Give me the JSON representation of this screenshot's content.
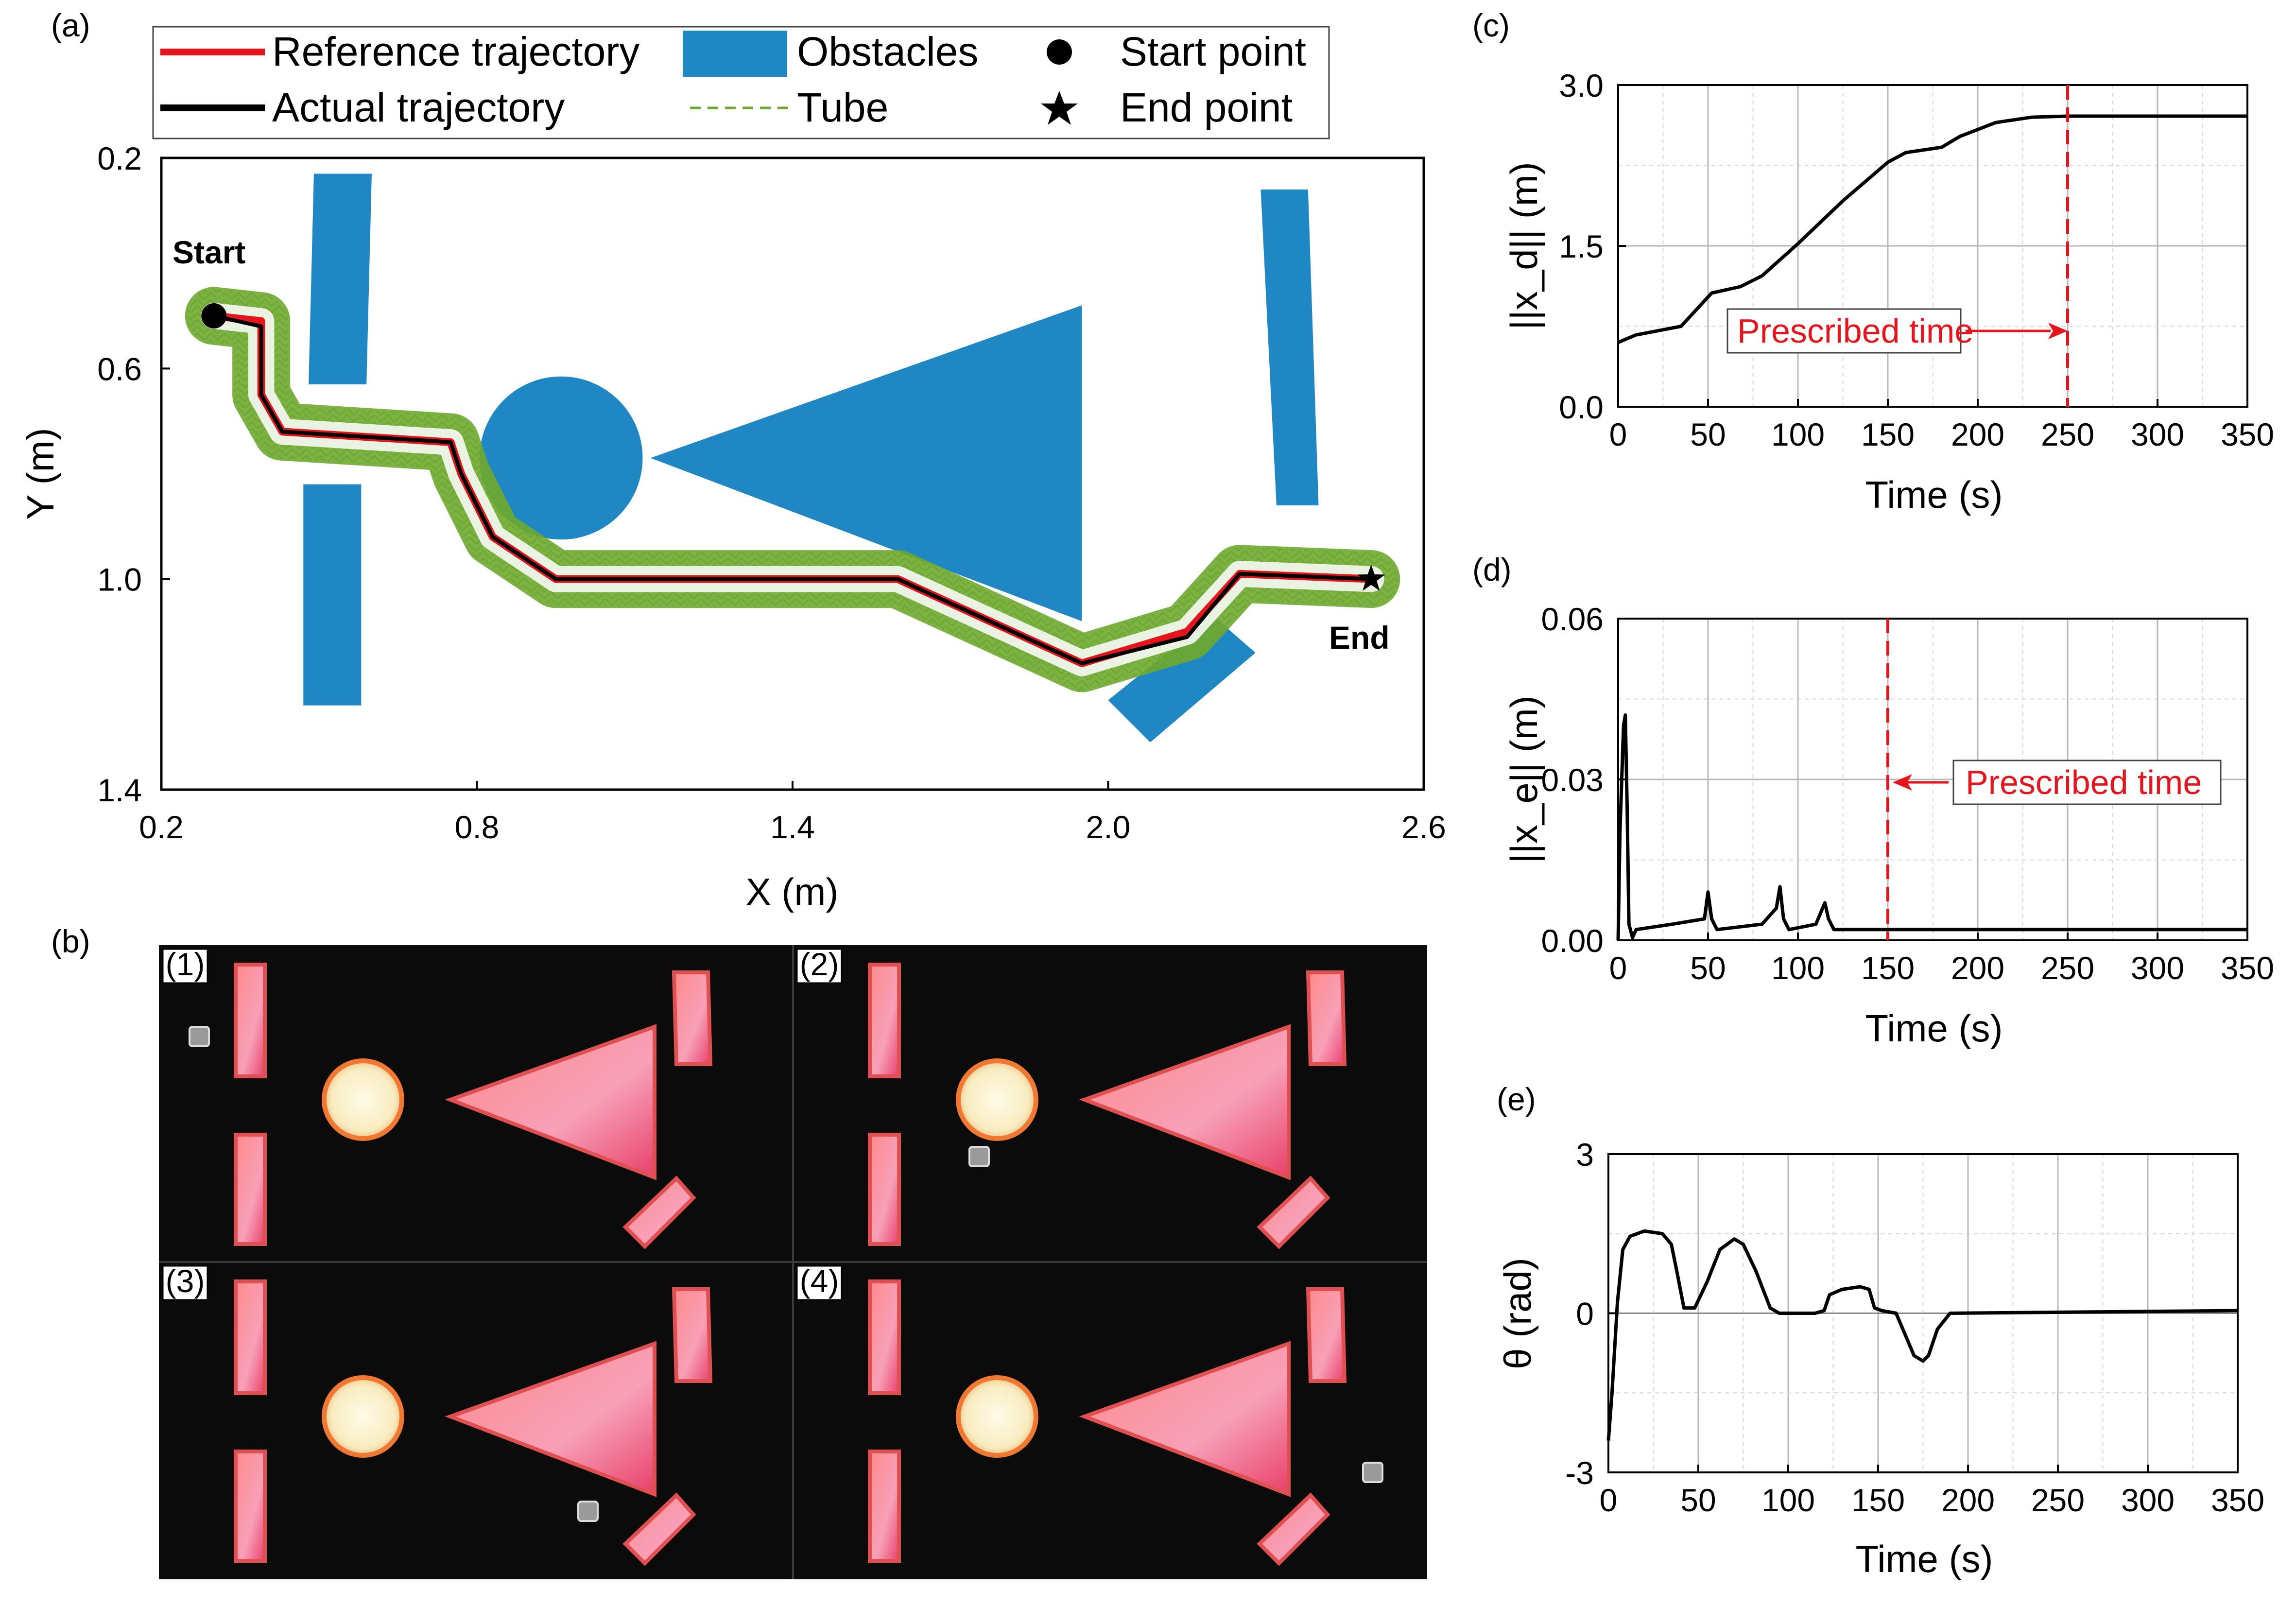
{
  "panels": {
    "a": "(a)",
    "b": "(b)",
    "c": "(c)",
    "d": "(d)",
    "e": "(e)"
  },
  "legend": [
    {
      "label": "Reference trajectory",
      "marker": "red-line",
      "color": "#e8141b"
    },
    {
      "label": "Actual trajectory",
      "marker": "black-line",
      "color": "#000000"
    },
    {
      "label": "Obstacles",
      "marker": "blue-rect",
      "color": "#1e87c4"
    },
    {
      "label": "Tube",
      "marker": "green-dashed-line",
      "color": "#6ea82f"
    },
    {
      "label": "Start point",
      "marker": "black-circle",
      "color": "#000000"
    },
    {
      "label": "End point",
      "marker": "black-star",
      "color": "#000000"
    }
  ],
  "photo_labels": [
    "(1)",
    "(2)",
    "(3)",
    "(4)"
  ],
  "chart_data": [
    {
      "id": "a",
      "type": "line",
      "xlabel": "X (m)",
      "ylabel": "Y (m)",
      "xlim": [
        0.2,
        2.6
      ],
      "ylim": [
        1.4,
        0.2
      ],
      "xticks": [
        0.2,
        0.8,
        1.4,
        2.0,
        2.6
      ],
      "yticks": [
        0.2,
        0.6,
        1.0,
        1.4
      ],
      "annotations": {
        "start": "Start",
        "end": "End"
      },
      "start_point": [
        0.3,
        0.5
      ],
      "end_point": [
        2.5,
        1.0
      ],
      "tube_radius": 0.055,
      "series": [
        {
          "name": "Reference trajectory",
          "color": "#e8141b",
          "x": [
            0.3,
            0.39,
            0.39,
            0.43,
            0.75,
            0.77,
            0.83,
            0.95,
            1.6,
            1.95,
            2.15,
            2.25,
            2.5
          ],
          "y": [
            0.5,
            0.51,
            0.65,
            0.72,
            0.74,
            0.8,
            0.92,
            1.0,
            1.0,
            1.16,
            1.1,
            0.99,
            1.0
          ]
        },
        {
          "name": "Actual trajectory",
          "color": "#000000",
          "x": [
            0.3,
            0.39,
            0.39,
            0.43,
            0.75,
            0.77,
            0.83,
            0.95,
            1.6,
            1.95,
            2.15,
            2.25,
            2.5
          ],
          "y": [
            0.5,
            0.52,
            0.65,
            0.72,
            0.74,
            0.8,
            0.92,
            1.0,
            1.0,
            1.16,
            1.11,
            0.99,
            1.0
          ]
        }
      ],
      "obstacles": [
        {
          "shape": "rect",
          "corners": [
            [
              0.49,
              0.23
            ],
            [
              0.6,
              0.23
            ],
            [
              0.59,
              0.63
            ],
            [
              0.48,
              0.63
            ]
          ]
        },
        {
          "shape": "rect",
          "corners": [
            [
              0.47,
              0.82
            ],
            [
              0.58,
              0.82
            ],
            [
              0.58,
              1.24
            ],
            [
              0.47,
              1.24
            ]
          ]
        },
        {
          "shape": "circle",
          "center": [
            0.96,
            0.77
          ],
          "r": 0.155
        },
        {
          "shape": "triangle",
          "corners": [
            [
              1.13,
              0.77
            ],
            [
              1.95,
              0.48
            ],
            [
              1.95,
              1.08
            ]
          ]
        },
        {
          "shape": "rect",
          "corners": [
            [
              2.29,
              0.26
            ],
            [
              2.38,
              0.26
            ],
            [
              2.4,
              0.86
            ],
            [
              2.32,
              0.86
            ]
          ]
        },
        {
          "shape": "rect",
          "corners": [
            [
              2.0,
              1.23
            ],
            [
              2.2,
              1.07
            ],
            [
              2.28,
              1.14
            ],
            [
              2.08,
              1.31
            ]
          ]
        }
      ]
    },
    {
      "id": "c",
      "type": "line",
      "xlabel": "Time (s)",
      "ylabel": "||x_d|| (m)",
      "xlim": [
        0,
        350
      ],
      "ylim": [
        0,
        3.0
      ],
      "xticks": [
        0,
        50,
        100,
        150,
        200,
        250,
        300,
        350
      ],
      "yticks": [
        0.0,
        1.5,
        3.0
      ],
      "prescribed_time": 250,
      "annotation": "Prescribed time",
      "series": [
        {
          "name": "",
          "color": "#000000",
          "x": [
            0,
            10,
            35,
            52,
            68,
            80,
            100,
            125,
            150,
            160,
            180,
            190,
            210,
            230,
            250,
            350
          ],
          "y": [
            0.6,
            0.67,
            0.75,
            1.06,
            1.12,
            1.22,
            1.52,
            1.92,
            2.28,
            2.37,
            2.42,
            2.52,
            2.65,
            2.7,
            2.71,
            2.71
          ]
        }
      ]
    },
    {
      "id": "d",
      "type": "line",
      "xlabel": "Time (s)",
      "ylabel": "||x_e|| (m)",
      "xlim": [
        0,
        350
      ],
      "ylim": [
        0,
        0.06
      ],
      "xticks": [
        0,
        50,
        100,
        150,
        200,
        250,
        300,
        350
      ],
      "yticks": [
        0.0,
        0.03,
        0.06
      ],
      "prescribed_time": 150,
      "annotation": "Prescribed time",
      "series": [
        {
          "name": "",
          "color": "#000000",
          "x": [
            0,
            1,
            3,
            4,
            5,
            6,
            8,
            10,
            30,
            48,
            50,
            52,
            55,
            80,
            88,
            90,
            92,
            95,
            110,
            115,
            117,
            120,
            150,
            200,
            250,
            300,
            350
          ],
          "y": [
            0.0,
            0.02,
            0.04,
            0.042,
            0.025,
            0.003,
            0.0005,
            0.002,
            0.003,
            0.004,
            0.009,
            0.004,
            0.002,
            0.003,
            0.006,
            0.01,
            0.004,
            0.002,
            0.003,
            0.007,
            0.004,
            0.002,
            0.002,
            0.002,
            0.002,
            0.002,
            0.002
          ]
        }
      ]
    },
    {
      "id": "e",
      "type": "line",
      "xlabel": "Time (s)",
      "ylabel": "θ (rad)",
      "xlim": [
        0,
        350
      ],
      "ylim": [
        -3,
        3
      ],
      "xticks": [
        0,
        50,
        100,
        150,
        200,
        250,
        300,
        350
      ],
      "yticks": [
        -3,
        0,
        3
      ],
      "series": [
        {
          "name": "",
          "color": "#000000",
          "x": [
            0,
            2,
            5,
            8,
            12,
            20,
            30,
            35,
            38,
            42,
            48,
            55,
            62,
            70,
            75,
            82,
            90,
            95,
            100,
            115,
            120,
            123,
            130,
            140,
            145,
            148,
            152,
            160,
            165,
            170,
            175,
            178,
            183,
            190,
            350
          ],
          "y": [
            -2.4,
            -1.5,
            0.2,
            1.2,
            1.45,
            1.55,
            1.5,
            1.3,
            0.8,
            0.1,
            0.1,
            0.6,
            1.2,
            1.4,
            1.3,
            0.8,
            0.1,
            0.0,
            0.0,
            0.0,
            0.05,
            0.35,
            0.45,
            0.5,
            0.45,
            0.1,
            0.05,
            0.0,
            -0.4,
            -0.8,
            -0.9,
            -0.8,
            -0.3,
            0.0,
            0.05
          ]
        }
      ]
    }
  ]
}
